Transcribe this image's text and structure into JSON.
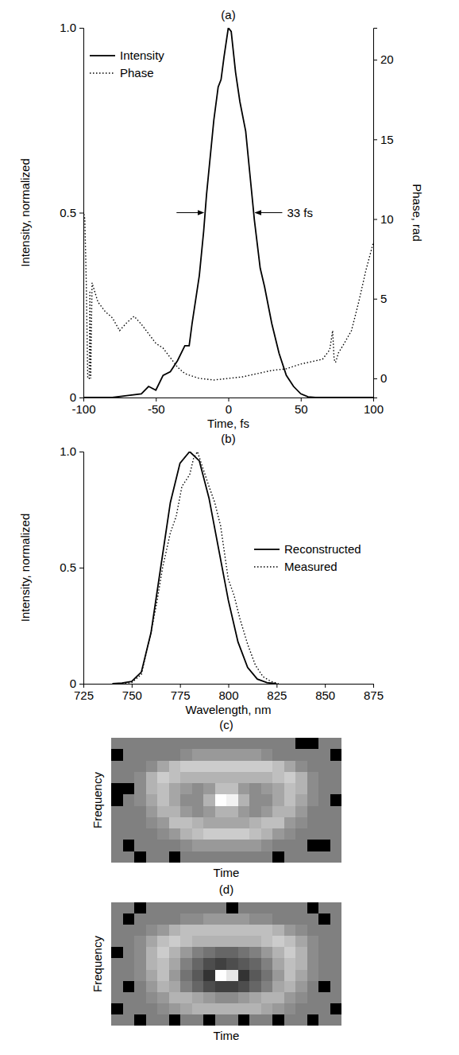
{
  "chart_data": [
    {
      "type": "line",
      "title": "(a)",
      "x_label": "Time, fs",
      "y_label": "Intensity, normalized",
      "y2_label": "Phase, rad",
      "xlim": [
        -100,
        100
      ],
      "xticks": [
        -100,
        -50,
        0,
        50,
        100
      ],
      "ylim": [
        0,
        1
      ],
      "yticks": [
        0,
        0.5,
        {
          "value": 1,
          "label": "1.0"
        }
      ],
      "y2lim": [
        -1.2,
        22
      ],
      "y2ticks": [
        0,
        5,
        10,
        15,
        20
      ],
      "legend": "upper left",
      "annotations": [
        "33 fs"
      ],
      "series": [
        {
          "name": "Intensity",
          "color": "#000000",
          "line_style": "solid",
          "x": [
            -100,
            -80,
            -70,
            -60,
            -55,
            -50,
            -45,
            -40,
            -35,
            -30,
            -27,
            -25,
            -20,
            -17,
            -15,
            -10,
            -7,
            -5,
            -3,
            0,
            2,
            5,
            8,
            12,
            15,
            18,
            22,
            25,
            30,
            35,
            40,
            45,
            50,
            55,
            60,
            100
          ],
          "values": [
            0,
            0,
            0.005,
            0.01,
            0.03,
            0.02,
            0.06,
            0.07,
            0.1,
            0.14,
            0.14,
            0.2,
            0.33,
            0.45,
            0.55,
            0.75,
            0.84,
            0.86,
            0.92,
            1.0,
            0.99,
            0.88,
            0.8,
            0.72,
            0.6,
            0.48,
            0.35,
            0.3,
            0.2,
            0.12,
            0.06,
            0.03,
            0.01,
            0.002,
            0,
            0
          ]
        },
        {
          "name": "Phase",
          "color": "#000000",
          "line_style": "dotted",
          "axis": "y2",
          "x": [
            -100,
            -99,
            -98,
            -97,
            -96,
            -95.5,
            -95,
            -94,
            -90,
            -85,
            -80,
            -75,
            -70,
            -65,
            -60,
            -55,
            -50,
            -45,
            -40,
            -35,
            -30,
            -20,
            -10,
            0,
            10,
            20,
            30,
            40,
            50,
            60,
            65,
            70,
            72,
            73,
            74,
            76,
            80,
            85,
            90,
            95,
            100
          ],
          "values": [
            10.5,
            10,
            6,
            0,
            0,
            5.5,
            0,
            6,
            4.8,
            4.2,
            3.8,
            3.0,
            3.5,
            3.9,
            3.4,
            2.8,
            2.2,
            1.9,
            1.3,
            0.7,
            0.3,
            0.0,
            -0.1,
            0.0,
            0.1,
            0.3,
            0.5,
            0.6,
            0.9,
            1.1,
            1.2,
            1.8,
            3.0,
            1.2,
            1.0,
            1.6,
            2.2,
            3.0,
            4.8,
            6.8,
            8.5
          ]
        }
      ]
    },
    {
      "type": "line",
      "title": "(b)",
      "x_label": "Wavelength, nm",
      "y_label": "Intensity, normalized",
      "xlim": [
        725,
        875
      ],
      "xticks": [
        725,
        750,
        775,
        800,
        825,
        850,
        875
      ],
      "ylim": [
        0,
        1
      ],
      "yticks": [
        0,
        0.5,
        {
          "value": 1,
          "label": "1.0"
        }
      ],
      "legend": "right",
      "series": [
        {
          "name": "Reconstructed",
          "color": "#000000",
          "line_style": "solid",
          "x": [
            740,
            745,
            750,
            755,
            760,
            765,
            770,
            775,
            780,
            785,
            790,
            795,
            800,
            805,
            810,
            815,
            820,
            825
          ],
          "values": [
            0,
            0.003,
            0.01,
            0.05,
            0.22,
            0.5,
            0.78,
            0.95,
            1.0,
            0.96,
            0.8,
            0.58,
            0.36,
            0.18,
            0.07,
            0.02,
            0.005,
            0
          ]
        },
        {
          "name": "Measured",
          "color": "#000000",
          "line_style": "dotted",
          "x": [
            745,
            750,
            755,
            760,
            763,
            766,
            770,
            773,
            776,
            780,
            782,
            784,
            786,
            788,
            790,
            793,
            796,
            800,
            803,
            806,
            810,
            814,
            818,
            822,
            826
          ],
          "values": [
            0,
            0.005,
            0.04,
            0.22,
            0.35,
            0.5,
            0.65,
            0.72,
            0.85,
            0.9,
            0.97,
            1.0,
            0.95,
            0.9,
            0.85,
            0.78,
            0.68,
            0.45,
            0.38,
            0.28,
            0.17,
            0.08,
            0.03,
            0.01,
            0
          ]
        }
      ]
    },
    {
      "type": "heatmap",
      "title": "(c)",
      "x_label": "Time",
      "y_label": "Frequency",
      "tick_labels": false,
      "zlim": [
        0,
        1
      ],
      "cells": [
        [
          0.5,
          0.5,
          0.5,
          0.5,
          0.5,
          0.5,
          0.5,
          0.5,
          0.5,
          0.5,
          0.5,
          0.5,
          0.5,
          0.5,
          0.5,
          0.5,
          0.0,
          0.0,
          0.5,
          0.5
        ],
        [
          0.0,
          0.5,
          0.5,
          0.5,
          0.5,
          0.5,
          0.55,
          0.6,
          0.6,
          0.6,
          0.6,
          0.6,
          0.6,
          0.55,
          0.5,
          0.5,
          0.5,
          0.5,
          0.5,
          0.0
        ],
        [
          0.5,
          0.5,
          0.5,
          0.55,
          0.65,
          0.75,
          0.8,
          0.8,
          0.8,
          0.8,
          0.8,
          0.8,
          0.8,
          0.8,
          0.75,
          0.65,
          0.55,
          0.5,
          0.5,
          0.5
        ],
        [
          0.5,
          0.5,
          0.55,
          0.7,
          0.8,
          0.75,
          0.7,
          0.7,
          0.7,
          0.7,
          0.7,
          0.7,
          0.7,
          0.7,
          0.75,
          0.8,
          0.7,
          0.55,
          0.5,
          0.5
        ],
        [
          0.0,
          0.0,
          0.55,
          0.7,
          0.75,
          0.65,
          0.6,
          0.55,
          0.6,
          0.75,
          0.75,
          0.6,
          0.55,
          0.6,
          0.65,
          0.75,
          0.7,
          0.55,
          0.5,
          0.5
        ],
        [
          0.0,
          0.5,
          0.55,
          0.65,
          0.75,
          0.65,
          0.55,
          0.55,
          0.7,
          1.0,
          0.95,
          0.7,
          0.55,
          0.55,
          0.65,
          0.75,
          0.65,
          0.55,
          0.5,
          0.0
        ],
        [
          0.5,
          0.5,
          0.5,
          0.6,
          0.7,
          0.7,
          0.6,
          0.55,
          0.6,
          0.7,
          0.7,
          0.6,
          0.55,
          0.6,
          0.7,
          0.7,
          0.6,
          0.5,
          0.5,
          0.5
        ],
        [
          0.5,
          0.5,
          0.5,
          0.55,
          0.6,
          0.75,
          0.75,
          0.7,
          0.65,
          0.65,
          0.65,
          0.65,
          0.7,
          0.75,
          0.75,
          0.6,
          0.55,
          0.5,
          0.5,
          0.5
        ],
        [
          0.5,
          0.5,
          0.5,
          0.5,
          0.55,
          0.6,
          0.7,
          0.75,
          0.8,
          0.8,
          0.8,
          0.8,
          0.75,
          0.7,
          0.6,
          0.55,
          0.5,
          0.5,
          0.5,
          0.5
        ],
        [
          0.5,
          0.0,
          0.5,
          0.5,
          0.5,
          0.5,
          0.55,
          0.6,
          0.6,
          0.6,
          0.6,
          0.6,
          0.6,
          0.55,
          0.5,
          0.5,
          0.5,
          0.0,
          0.0,
          0.5
        ],
        [
          0.5,
          0.5,
          0.0,
          0.5,
          0.5,
          0.0,
          0.5,
          0.5,
          0.5,
          0.5,
          0.5,
          0.5,
          0.5,
          0.5,
          0.0,
          0.5,
          0.5,
          0.5,
          0.5,
          0.5
        ]
      ]
    },
    {
      "type": "heatmap",
      "title": "(d)",
      "x_label": "Time",
      "y_label": "Frequency",
      "tick_labels": false,
      "zlim": [
        0,
        1
      ],
      "cells": [
        [
          0.5,
          0.5,
          0.0,
          0.5,
          0.5,
          0.5,
          0.5,
          0.5,
          0.5,
          0.5,
          0.0,
          0.5,
          0.5,
          0.5,
          0.5,
          0.5,
          0.5,
          0.0,
          0.5,
          0.5
        ],
        [
          0.5,
          0.0,
          0.5,
          0.5,
          0.5,
          0.5,
          0.55,
          0.55,
          0.6,
          0.6,
          0.6,
          0.6,
          0.55,
          0.55,
          0.5,
          0.5,
          0.5,
          0.5,
          0.0,
          0.5
        ],
        [
          0.5,
          0.5,
          0.5,
          0.55,
          0.6,
          0.7,
          0.75,
          0.75,
          0.75,
          0.75,
          0.75,
          0.75,
          0.75,
          0.75,
          0.7,
          0.6,
          0.55,
          0.5,
          0.5,
          0.5
        ],
        [
          0.5,
          0.5,
          0.55,
          0.65,
          0.75,
          0.8,
          0.75,
          0.7,
          0.7,
          0.7,
          0.7,
          0.7,
          0.7,
          0.75,
          0.8,
          0.75,
          0.65,
          0.55,
          0.5,
          0.5
        ],
        [
          0.0,
          0.5,
          0.55,
          0.7,
          0.8,
          0.7,
          0.6,
          0.5,
          0.45,
          0.4,
          0.4,
          0.45,
          0.5,
          0.6,
          0.7,
          0.8,
          0.7,
          0.55,
          0.5,
          0.5
        ],
        [
          0.5,
          0.5,
          0.55,
          0.7,
          0.75,
          0.65,
          0.5,
          0.4,
          0.3,
          0.25,
          0.3,
          0.35,
          0.4,
          0.5,
          0.65,
          0.75,
          0.7,
          0.55,
          0.5,
          0.5
        ],
        [
          0.5,
          0.5,
          0.55,
          0.65,
          0.75,
          0.6,
          0.45,
          0.35,
          0.2,
          1.0,
          0.9,
          0.2,
          0.35,
          0.45,
          0.6,
          0.75,
          0.65,
          0.55,
          0.5,
          0.5
        ],
        [
          0.5,
          0.0,
          0.5,
          0.6,
          0.7,
          0.65,
          0.5,
          0.4,
          0.3,
          0.25,
          0.25,
          0.3,
          0.4,
          0.5,
          0.65,
          0.7,
          0.6,
          0.5,
          0.0,
          0.5
        ],
        [
          0.5,
          0.5,
          0.5,
          0.55,
          0.6,
          0.7,
          0.7,
          0.65,
          0.6,
          0.55,
          0.55,
          0.6,
          0.65,
          0.7,
          0.7,
          0.6,
          0.55,
          0.5,
          0.5,
          0.5
        ],
        [
          0.0,
          0.5,
          0.5,
          0.5,
          0.55,
          0.6,
          0.65,
          0.7,
          0.7,
          0.7,
          0.7,
          0.7,
          0.7,
          0.65,
          0.6,
          0.55,
          0.5,
          0.5,
          0.5,
          0.0
        ],
        [
          0.5,
          0.5,
          0.0,
          0.5,
          0.5,
          0.0,
          0.5,
          0.5,
          0.0,
          0.5,
          0.5,
          0.0,
          0.5,
          0.5,
          0.0,
          0.5,
          0.5,
          0.0,
          0.5,
          0.5
        ]
      ]
    }
  ]
}
